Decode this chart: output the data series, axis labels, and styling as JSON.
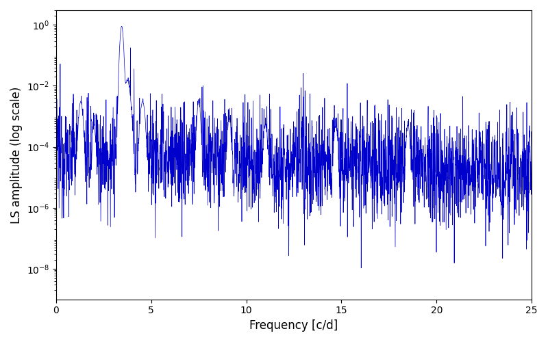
{
  "title": "",
  "xlabel": "Frequency [c/d]",
  "ylabel": "LS amplitude (log scale)",
  "xlim": [
    0,
    25
  ],
  "ylim": [
    1e-09,
    3.0
  ],
  "line_color": "#0000cc",
  "line_width": 0.5,
  "background_color": "#ffffff",
  "figsize": [
    8.0,
    5.0
  ],
  "dpi": 100,
  "seed": 12345,
  "n_points": 2500,
  "peak_freqs": [
    1.3,
    2.0,
    3.45,
    3.75,
    4.55,
    7.5,
    9.1,
    11.0,
    14.7,
    18.5
  ],
  "peak_amps": [
    0.003,
    0.0005,
    0.9,
    0.015,
    0.003,
    0.003,
    0.0008,
    0.0005,
    0.0005,
    0.0005
  ],
  "peak_widths": [
    0.07,
    0.05,
    0.06,
    0.1,
    0.08,
    0.06,
    0.06,
    0.06,
    0.06,
    0.06
  ],
  "noise_floor_base": -4.2,
  "noise_floor_slope": -0.025,
  "noise_std": 0.9,
  "yticks": [
    1e-08,
    1e-06,
    0.0001,
    0.01,
    1.0
  ]
}
